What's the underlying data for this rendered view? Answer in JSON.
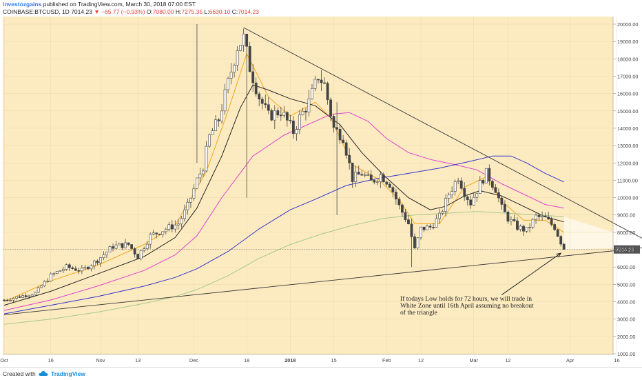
{
  "header": {
    "author": "investozgains",
    "published": "published on TradingView.com, March 30, 2018 07:00 EST",
    "symbol": "COINBASE:BTCUSD, 1D",
    "last": "7014.23",
    "change": "▼ −65.77 (−0.93%)",
    "o_label": "O:",
    "o_val": "7080.00",
    "h_label": "H:",
    "h_val": "7275.35",
    "l_label": "L:",
    "l_val": "6630.10",
    "c_label": "C:",
    "c_val": "7014.23"
  },
  "footer": {
    "created": "Created with",
    "brand": "TradingView",
    "logo_icon": "tradingview-cloud-icon"
  },
  "colors": {
    "background": "#fcebc1",
    "candle": "#444444",
    "ema_fast": "#f2a51a",
    "ma_dark": "#222222",
    "ma_pink": "#e040d0",
    "ma_blue": "#3333cc",
    "ma_green": "#a6c98a",
    "trendline": "#333333",
    "price_label_bg": "#555555",
    "white_zone": "#ffffff"
  },
  "chart_data": {
    "type": "candlestick",
    "ylim": [
      0,
      21000
    ],
    "y_ticks": [
      "1000.00",
      "2000.00",
      "3000.00",
      "4000.00",
      "5000.00",
      "6000.00",
      "7000.00",
      "8000.00",
      "9000.00",
      "10000.00",
      "11000.00",
      "12000.00",
      "13000.00",
      "14000.00",
      "15000.00",
      "16000.00",
      "17000.00",
      "18000.00",
      "19000.00",
      "20000.00"
    ],
    "x_ticks": [
      {
        "label": "Oct",
        "day": 0
      },
      {
        "label": "16",
        "day": 15
      },
      {
        "label": "Nov",
        "day": 31
      },
      {
        "label": "13",
        "day": 43
      },
      {
        "label": "Dec",
        "day": 61
      },
      {
        "label": "18",
        "day": 78
      },
      {
        "label": "2018",
        "day": 92
      },
      {
        "label": "15",
        "day": 106
      },
      {
        "label": "Feb",
        "day": 123
      },
      {
        "label": "12",
        "day": 134
      },
      {
        "label": "Mar",
        "day": 151
      },
      {
        "label": "12",
        "day": 162
      },
      {
        "label": "Apr",
        "day": 182
      },
      {
        "label": "16",
        "day": 197
      }
    ],
    "last_day": 180,
    "last_price": 7014.23,
    "last_price_label": "7014.23",
    "anchors": [
      [
        0,
        4100
      ],
      [
        5,
        4300
      ],
      [
        10,
        4500
      ],
      [
        15,
        5500
      ],
      [
        20,
        6000
      ],
      [
        25,
        5800
      ],
      [
        30,
        6400
      ],
      [
        35,
        7200
      ],
      [
        40,
        7300
      ],
      [
        43,
        6600
      ],
      [
        47,
        7800
      ],
      [
        52,
        8200
      ],
      [
        56,
        8500
      ],
      [
        59,
        9500
      ],
      [
        62,
        11000
      ],
      [
        64,
        11800
      ],
      [
        66,
        13500
      ],
      [
        69,
        14500
      ],
      [
        72,
        16600
      ],
      [
        75,
        18700
      ],
      [
        77,
        19200
      ],
      [
        79,
        17500
      ],
      [
        82,
        15800
      ],
      [
        85,
        14700
      ],
      [
        89,
        15000
      ],
      [
        93,
        13800
      ],
      [
        95,
        14600
      ],
      [
        98,
        15500
      ],
      [
        101,
        17000
      ],
      [
        103,
        16500
      ],
      [
        106,
        14000
      ],
      [
        109,
        13500
      ],
      [
        112,
        11100
      ],
      [
        115,
        11400
      ],
      [
        118,
        10900
      ],
      [
        121,
        11300
      ],
      [
        124,
        10800
      ],
      [
        127,
        9500
      ],
      [
        130,
        8500
      ],
      [
        132,
        7000
      ],
      [
        134,
        8200
      ],
      [
        137,
        8300
      ],
      [
        140,
        8900
      ],
      [
        143,
        10200
      ],
      [
        146,
        11200
      ],
      [
        148,
        10300
      ],
      [
        150,
        9700
      ],
      [
        153,
        10800
      ],
      [
        155,
        11400
      ],
      [
        158,
        10500
      ],
      [
        160,
        9400
      ],
      [
        162,
        8800
      ],
      [
        165,
        8300
      ],
      [
        168,
        8100
      ],
      [
        171,
        8900
      ],
      [
        174,
        8800
      ],
      [
        177,
        8300
      ],
      [
        180,
        7014
      ]
    ],
    "special_candles": [
      {
        "day": 62,
        "high": 20000,
        "low": 12000
      },
      {
        "day": 78,
        "high": 19000,
        "low": 10000
      },
      {
        "day": 107,
        "high": 15500,
        "low": 9000
      },
      {
        "day": 131,
        "high": 8800,
        "low": 6000
      }
    ],
    "moving_averages": [
      {
        "key": "ema_fast",
        "points": [
          [
            0,
            4000
          ],
          [
            15,
            5200
          ],
          [
            30,
            6100
          ],
          [
            45,
            7300
          ],
          [
            55,
            8400
          ],
          [
            65,
            11500
          ],
          [
            72,
            15000
          ],
          [
            78,
            18300
          ],
          [
            85,
            15800
          ],
          [
            92,
            14700
          ],
          [
            100,
            15500
          ],
          [
            105,
            14600
          ],
          [
            112,
            11900
          ],
          [
            120,
            11100
          ],
          [
            127,
            9900
          ],
          [
            132,
            8500
          ],
          [
            140,
            8500
          ],
          [
            148,
            10600
          ],
          [
            155,
            11200
          ],
          [
            160,
            9800
          ],
          [
            167,
            8700
          ],
          [
            174,
            8700
          ],
          [
            180,
            8000
          ]
        ]
      },
      {
        "key": "ma_dark",
        "points": [
          [
            0,
            3800
          ],
          [
            15,
            4600
          ],
          [
            30,
            5600
          ],
          [
            45,
            6600
          ],
          [
            55,
            7700
          ],
          [
            62,
            9400
          ],
          [
            70,
            12400
          ],
          [
            76,
            15200
          ],
          [
            80,
            16500
          ],
          [
            85,
            16200
          ],
          [
            92,
            15700
          ],
          [
            100,
            15300
          ],
          [
            108,
            14200
          ],
          [
            115,
            12600
          ],
          [
            122,
            11300
          ],
          [
            130,
            10000
          ],
          [
            137,
            9300
          ],
          [
            142,
            9500
          ],
          [
            148,
            10100
          ],
          [
            153,
            10400
          ],
          [
            160,
            10100
          ],
          [
            167,
            9500
          ],
          [
            174,
            8900
          ],
          [
            180,
            8600
          ]
        ]
      },
      {
        "key": "ma_pink",
        "points": [
          [
            0,
            3500
          ],
          [
            15,
            4100
          ],
          [
            30,
            4900
          ],
          [
            45,
            5800
          ],
          [
            55,
            6700
          ],
          [
            62,
            7800
          ],
          [
            70,
            10000
          ],
          [
            80,
            12400
          ],
          [
            90,
            13600
          ],
          [
            100,
            14400
          ],
          [
            105,
            14800
          ],
          [
            111,
            14900
          ],
          [
            117,
            14400
          ],
          [
            123,
            13400
          ],
          [
            130,
            12600
          ],
          [
            137,
            12200
          ],
          [
            145,
            11900
          ],
          [
            152,
            11600
          ],
          [
            160,
            10800
          ],
          [
            167,
            10200
          ],
          [
            174,
            9600
          ],
          [
            180,
            9400
          ]
        ]
      },
      {
        "key": "ma_blue",
        "points": [
          [
            0,
            3300
          ],
          [
            15,
            3800
          ],
          [
            30,
            4300
          ],
          [
            45,
            4900
          ],
          [
            55,
            5400
          ],
          [
            62,
            5900
          ],
          [
            72,
            6900
          ],
          [
            82,
            8200
          ],
          [
            92,
            9300
          ],
          [
            100,
            9900
          ],
          [
            110,
            10700
          ],
          [
            120,
            11100
          ],
          [
            130,
            11400
          ],
          [
            140,
            11700
          ],
          [
            150,
            12100
          ],
          [
            157,
            12400
          ],
          [
            163,
            12400
          ],
          [
            168,
            12000
          ],
          [
            174,
            11400
          ],
          [
            180,
            10900
          ]
        ]
      },
      {
        "key": "ma_green",
        "points": [
          [
            0,
            2700
          ],
          [
            15,
            3000
          ],
          [
            30,
            3400
          ],
          [
            45,
            3900
          ],
          [
            55,
            4300
          ],
          [
            62,
            4700
          ],
          [
            72,
            5500
          ],
          [
            82,
            6500
          ],
          [
            92,
            7300
          ],
          [
            102,
            7900
          ],
          [
            112,
            8400
          ],
          [
            122,
            8800
          ],
          [
            132,
            9000
          ],
          [
            142,
            9100
          ],
          [
            152,
            9200
          ],
          [
            162,
            9100
          ],
          [
            172,
            9000
          ],
          [
            180,
            8900
          ]
        ]
      }
    ],
    "trendlines": [
      {
        "from": [
          77,
          19800
        ],
        "to": [
          210,
          7200
        ]
      },
      {
        "from": [
          0,
          3250
        ],
        "to": [
          210,
          7200
        ]
      }
    ],
    "white_zone_polygon": [
      [
        180,
        6980
      ],
      [
        210,
        7200
      ],
      [
        180,
        8900
      ]
    ],
    "annotation": {
      "text_lines": [
        "If todays Low holds for 72 hours, we will trade in",
        "White Zone until 16th April assuming no breakout",
        "of the triangle"
      ],
      "arrow_from": [
        160,
        4400
      ],
      "arrow_to": [
        179,
        6800
      ]
    }
  }
}
